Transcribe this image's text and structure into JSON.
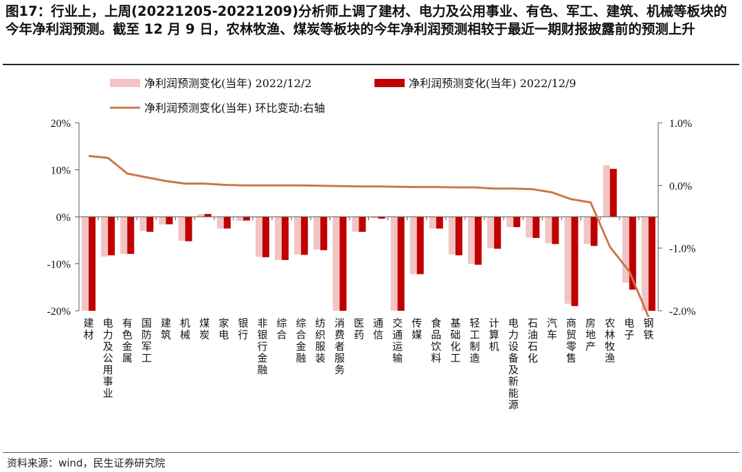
{
  "header": {
    "title": "图17：行业上，上周(20221205-20221209)分析师上调了建材、电力及公用事业、有色、军工、建筑、机械等板块的今年净利润预测。截至 12 月 9 日，农林牧渔、煤炭等板块的今年净利润预测相较于最近一期财报披露前的预测上升"
  },
  "footer": {
    "source": "资料来源：wind，民生证券研究院"
  },
  "colors": {
    "series1": "#f2c4c4",
    "series2": "#c00000",
    "line": "#c8784a"
  },
  "chart_data": {
    "type": "bar",
    "title": "",
    "legend": [
      "净利润预测变化(当年) 2022/12/2",
      "净利润预测变化(当年) 2022/12/9",
      "净利润预测变化(当年) 环比变动:右轴"
    ],
    "categories": [
      "建材",
      "电力及公用事业",
      "有色金属",
      "国防军工",
      "建筑",
      "机械",
      "煤炭",
      "家电",
      "银行",
      "非银行金融",
      "综合",
      "综合金融",
      "纺织服装",
      "消费者服务",
      "医药",
      "通信",
      "交通运输",
      "传媒",
      "食品饮料",
      "基础化工",
      "轻工制造",
      "计算机",
      "电力设备及新能源",
      "石油石化",
      "汽车",
      "商贸零售",
      "房地产",
      "农林牧渔",
      "电子",
      "钢铁"
    ],
    "series": [
      {
        "name": "净利润预测变化(当年) 2022/12/2",
        "axis": "left",
        "type": "bar",
        "values": [
          -20.0,
          -8.5,
          -7.9,
          -3.0,
          -1.6,
          -5.1,
          0.6,
          -2.5,
          -0.9,
          -8.5,
          -9.2,
          -8.0,
          -7.0,
          -20.0,
          -3.2,
          -0.3,
          -20.0,
          -12.2,
          -2.5,
          -8.0,
          -10.0,
          -6.7,
          -2.2,
          -4.4,
          -5.6,
          -18.5,
          -5.8,
          11.0,
          -14.0,
          -20.0
        ]
      },
      {
        "name": "净利润预测变化(当年) 2022/12/9",
        "axis": "left",
        "type": "bar",
        "values": [
          -20.0,
          -8.2,
          -7.9,
          -3.2,
          -1.6,
          -5.2,
          0.6,
          -2.5,
          -0.8,
          -8.6,
          -9.2,
          -8.1,
          -7.1,
          -20.0,
          -3.2,
          -0.4,
          -20.0,
          -12.2,
          -2.5,
          -8.2,
          -10.2,
          -6.8,
          -2.2,
          -4.5,
          -5.8,
          -19.0,
          -6.2,
          10.2,
          -15.5,
          -20.0
        ]
      },
      {
        "name": "净利润预测变化(当年) 环比变动:右轴",
        "axis": "right",
        "type": "line",
        "values": [
          0.47,
          0.44,
          0.19,
          0.13,
          0.07,
          0.03,
          0.03,
          0.01,
          0.0,
          0.0,
          0.0,
          0.0,
          -0.005,
          -0.01,
          -0.015,
          -0.015,
          -0.02,
          -0.025,
          -0.025,
          -0.03,
          -0.03,
          -0.05,
          -0.05,
          -0.06,
          -0.11,
          -0.22,
          -0.27,
          -0.98,
          -1.37,
          -2.1
        ]
      }
    ],
    "ylim": [
      -20,
      20
    ],
    "yticks": [
      -20,
      -10,
      0,
      10,
      20
    ],
    "ytick_labels": [
      "-20%",
      "-10%",
      "0%",
      "10%",
      "20%"
    ],
    "y2lim": [
      -2.0,
      1.0
    ],
    "y2ticks": [
      -2.0,
      -1.0,
      0.0,
      1.0
    ],
    "y2tick_labels": [
      "-2.0%",
      "-1.0%",
      "0.0%",
      "1.0%"
    ],
    "grid": false
  }
}
